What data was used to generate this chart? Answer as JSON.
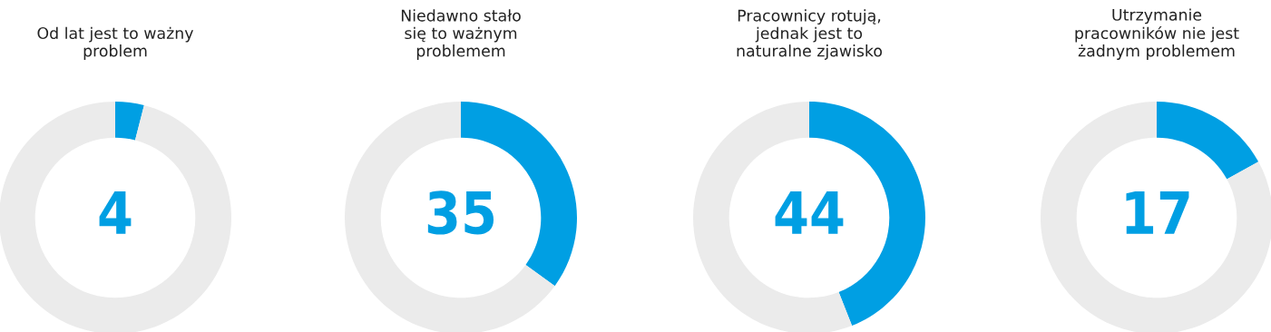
{
  "chart_data": [
    {
      "type": "donut",
      "title": "Od lat jest to ważny\nproblem",
      "categories": [
        null,
        null
      ],
      "values": [
        4,
        96
      ],
      "colors": [
        "#009fe3",
        "#ebebeb"
      ],
      "value_labels": [
        "4",
        null
      ]
    },
    {
      "type": "donut",
      "title": "Niedawno stało\nsię to ważnym\nproblemem",
      "categories": [
        null,
        null
      ],
      "values": [
        35,
        65
      ],
      "colors": [
        "#009fe3",
        "#ebebeb"
      ],
      "value_labels": [
        "35",
        null
      ]
    },
    {
      "type": "donut",
      "title": "Pracownicy rotują,\njednak jest to\nnaturalne zjawisko",
      "categories": [
        null,
        null
      ],
      "values": [
        44,
        56
      ],
      "colors": [
        "#009fe3",
        "#ebebeb"
      ],
      "value_labels": [
        "44",
        null
      ]
    },
    {
      "type": "donut",
      "title": "Utrzymanie\npracowników nie jest\nżadnym problemem",
      "categories": [
        null,
        null
      ],
      "values": [
        17,
        83
      ],
      "colors": [
        "#009fe3",
        "#ebebeb"
      ],
      "value_labels": [
        "17",
        null
      ]
    }
  ]
}
